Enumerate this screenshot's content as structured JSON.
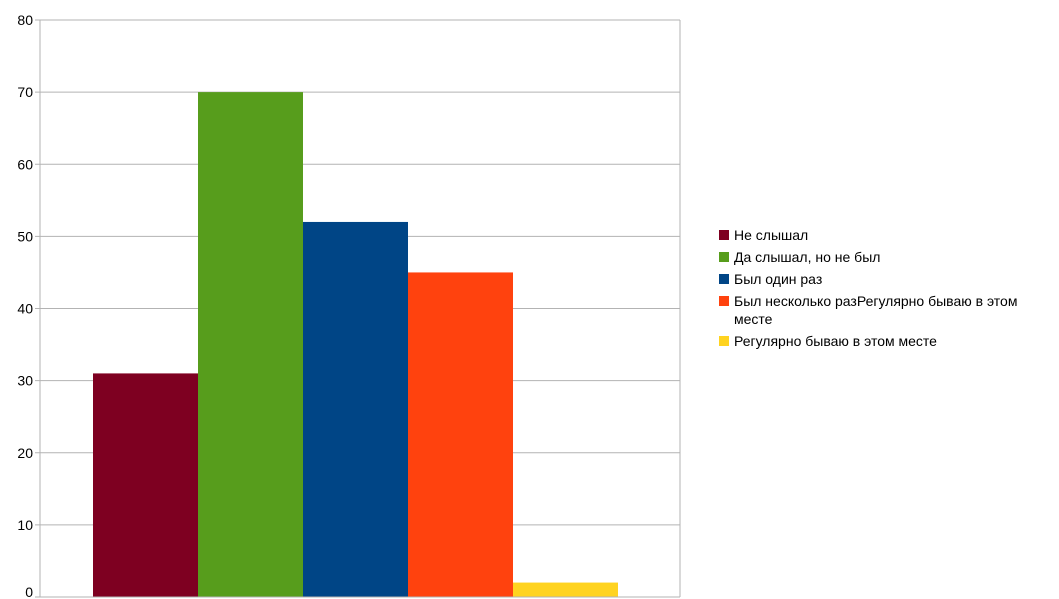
{
  "chart_data": {
    "type": "bar",
    "title": "",
    "xlabel": "",
    "ylabel": "",
    "ylim": [
      0,
      80
    ],
    "yticks": [
      0,
      10,
      20,
      30,
      40,
      50,
      60,
      70,
      80
    ],
    "grid": true,
    "legend_position": "right",
    "series": [
      {
        "name": "Не слышал",
        "value": 31,
        "color": "#7e0021"
      },
      {
        "name": "Да слышал, но не был",
        "value": 70,
        "color": "#579d1c"
      },
      {
        "name": "Был один раз",
        "value": 52,
        "color": "#004586"
      },
      {
        "name": "Был несколько разРегулярно бываю в этом месте",
        "value": 45,
        "color": "#ff420e"
      },
      {
        "name": "Регулярно бываю в этом месте",
        "value": 2,
        "color": "#ffd320"
      }
    ]
  }
}
